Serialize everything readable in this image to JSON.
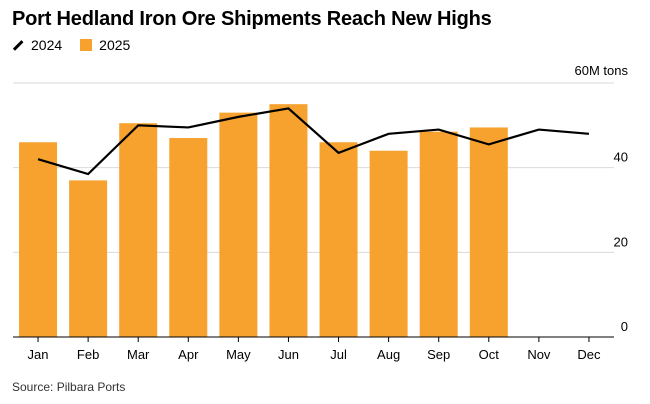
{
  "chart_data": {
    "type": "bar",
    "title": "Port Hedland Iron Ore Shipments Reach New Highs",
    "categories": [
      "Jan",
      "Feb",
      "Mar",
      "Apr",
      "May",
      "Jun",
      "Jul",
      "Aug",
      "Sep",
      "Oct",
      "Nov",
      "Dec"
    ],
    "series": [
      {
        "name": "2025",
        "type": "bar",
        "color": "#f7a22f",
        "values": [
          46,
          37,
          50.5,
          47,
          53,
          55,
          46,
          44,
          48.5,
          49.5,
          null,
          null
        ]
      },
      {
        "name": "2024",
        "type": "line",
        "color": "#000000",
        "values": [
          42,
          38.5,
          50,
          49.5,
          52,
          54,
          43.5,
          48,
          49,
          45.5,
          49,
          48
        ]
      }
    ],
    "ylim": [
      0,
      60
    ],
    "yticks": [
      0,
      20,
      40
    ],
    "ytick_labels": [
      "0",
      "20",
      "40"
    ],
    "yunit_label": "60M tons",
    "grid": true,
    "legend_position": "top-left"
  },
  "source": "Source: Pilbara Ports"
}
